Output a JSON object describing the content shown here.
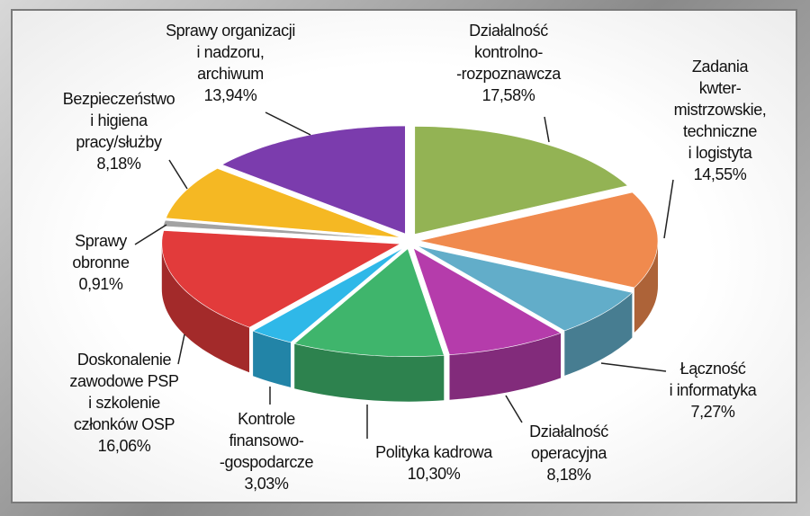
{
  "chart_data": {
    "type": "pie",
    "categories": [
      "Działalność\nkontrolno-\n-rozpoznawcza",
      "Zadania kwter-\nmistrzowskie,\ntechniczne\ni logistyta",
      "Łączność\ni informatyka",
      "Działalność\noperacyjna",
      "Polityka kadrowa",
      "Kontrole\nfinansowo-\n-gospodarcze",
      "Doskonalenie\nzawodowe PSP\ni szkolenie\nczłonków OSP",
      "Sprawy\nobronne",
      "Bezpieczeństwo\ni higiena\npracy/służby",
      "Sprawy organizacji\ni nadzoru,\narchiwum"
    ],
    "values": [
      17.58,
      14.55,
      7.27,
      8.18,
      10.3,
      3.03,
      16.06,
      0.91,
      8.18,
      13.94
    ],
    "value_labels": [
      "17,58%",
      "14,55%",
      "7,27%",
      "8,18%",
      "10,30%",
      "3,03%",
      "16,06%",
      "0,91%",
      "8,18%",
      "13,94%"
    ],
    "colors": [
      "#93b354",
      "#f08a4e",
      "#62adc9",
      "#b53cab",
      "#3fb56c",
      "#2fb8e8",
      "#e23b3b",
      "#a3a3a3",
      "#f5b823",
      "#7b3cad"
    ]
  }
}
